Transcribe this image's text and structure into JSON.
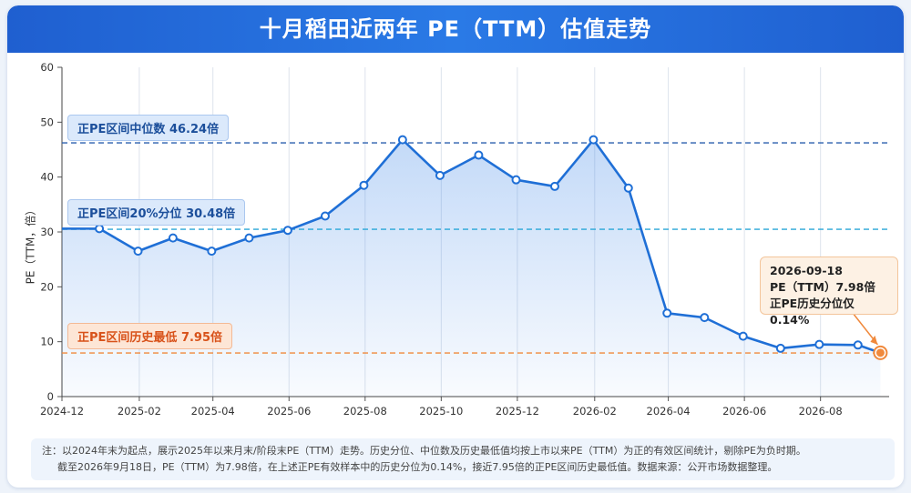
{
  "header": {
    "title": "十月稻田近两年 PE（TTM）估值走势"
  },
  "chart_data": {
    "type": "line",
    "ylabel": "PE（TTM，倍）",
    "ylim": [
      0,
      60
    ],
    "yticks": [
      "0",
      "10",
      "20",
      "30",
      "40",
      "50",
      "60"
    ],
    "xlim": [
      "2024-12-01",
      "2026-09-25"
    ],
    "xticks": [
      "2024-12",
      "2025-02",
      "2025-04",
      "2025-06",
      "2025-08",
      "2025-10",
      "2025-12",
      "2026-02",
      "2026-04",
      "2026-06",
      "2026-08"
    ],
    "grid": "vertical",
    "series": [
      {
        "x": [
          "2024-12-31",
          "2025-01-31",
          "2025-02-28",
          "2025-03-31",
          "2025-04-30",
          "2025-05-31",
          "2025-06-30",
          "2025-07-31",
          "2025-08-31",
          "2025-09-30",
          "2025-10-31",
          "2025-11-30",
          "2025-12-31",
          "2026-01-31",
          "2026-02-28",
          "2026-03-31",
          "2026-04-30",
          "2026-05-31",
          "2026-06-30",
          "2026-07-31",
          "2026-08-31",
          "2026-09-18"
        ],
        "values": [
          30.6,
          26.5,
          28.9,
          26.5,
          28.9,
          30.3,
          32.9,
          38.5,
          46.8,
          40.3,
          44.0,
          39.5,
          38.3,
          46.8,
          38.0,
          15.2,
          14.4,
          11.0,
          8.8,
          9.5,
          9.4,
          7.98
        ]
      }
    ],
    "reference_lines": [
      {
        "label": "正PE区间中位数",
        "value_text": "46.24倍",
        "value": 46.24,
        "color": "#2a5fae",
        "style": "dashed"
      },
      {
        "label": "正PE区间20%分位",
        "value_text": "30.48倍",
        "value": 30.48,
        "color": "#29a6d8",
        "style": "dashed"
      },
      {
        "label": "正PE区间历史最低",
        "value_text": "7.95倍",
        "value": 7.95,
        "color": "#f0893c",
        "style": "dashed"
      }
    ],
    "annotation": {
      "date": "2026-09-18",
      "line1": "PE（TTM）7.98倍",
      "line2": "正PE历史分位仅0.14%"
    }
  },
  "colors": {
    "line": "#1f6fd6",
    "header": "#2170dc",
    "highlight_point": "#f0893c"
  },
  "note": {
    "line1": "注：以2024年末为起点，展示2025年以来月末/阶段末PE（TTM）走势。历史分位、中位数及历史最低值均按上市以来PE（TTM）为正的有效区间统计，剔除PE为负时期。",
    "line2": "截至2026年9月18日，PE（TTM）为7.98倍，在上述正PE有效样本中的历史分位为0.14%，接近7.95倍的正PE区间历史最低值。数据来源：公开市场数据整理。"
  }
}
